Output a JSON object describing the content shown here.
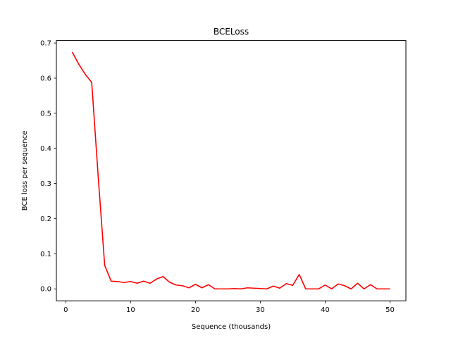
{
  "chart_data": {
    "type": "line",
    "title": "BCELoss",
    "xlabel": "Sequence (thousands)",
    "ylabel": "BCE loss per sequence",
    "xlim": [
      -1.45,
      52.45
    ],
    "ylim": [
      -0.034,
      0.707
    ],
    "xticks": [
      0,
      10,
      20,
      30,
      40,
      50
    ],
    "yticks": [
      0.0,
      0.1,
      0.2,
      0.3,
      0.4,
      0.5,
      0.6,
      0.7
    ],
    "xtick_labels": [
      "0",
      "10",
      "20",
      "30",
      "40",
      "50"
    ],
    "ytick_labels": [
      "0.0",
      "0.1",
      "0.2",
      "0.3",
      "0.4",
      "0.5",
      "0.6",
      "0.7"
    ],
    "grid": false,
    "series": [
      {
        "color": "#ff0000",
        "x": [
          1,
          2,
          3,
          4,
          5,
          6,
          7,
          8,
          9,
          10,
          11,
          12,
          13,
          14,
          15,
          16,
          17,
          18,
          19,
          20,
          21,
          22,
          23,
          24,
          25,
          26,
          27,
          28,
          29,
          30,
          31,
          32,
          33,
          34,
          35,
          36,
          37,
          38,
          39,
          40,
          41,
          42,
          43,
          44,
          45,
          46,
          47,
          48,
          49,
          50
        ],
        "y": [
          0.674,
          0.64,
          0.611,
          0.588,
          0.32,
          0.067,
          0.022,
          0.021,
          0.018,
          0.021,
          0.016,
          0.022,
          0.016,
          0.028,
          0.035,
          0.019,
          0.011,
          0.009,
          0.003,
          0.013,
          0.003,
          0.012,
          0.0,
          0.0,
          0.0,
          0.001,
          0.0,
          0.003,
          0.002,
          0.001,
          0.0,
          0.008,
          0.002,
          0.015,
          0.01,
          0.041,
          0.0,
          0.0,
          0.0,
          0.011,
          0.0,
          0.014,
          0.009,
          0.0,
          0.016,
          0.0,
          0.012,
          0.0,
          0.0,
          0.0
        ]
      }
    ]
  }
}
